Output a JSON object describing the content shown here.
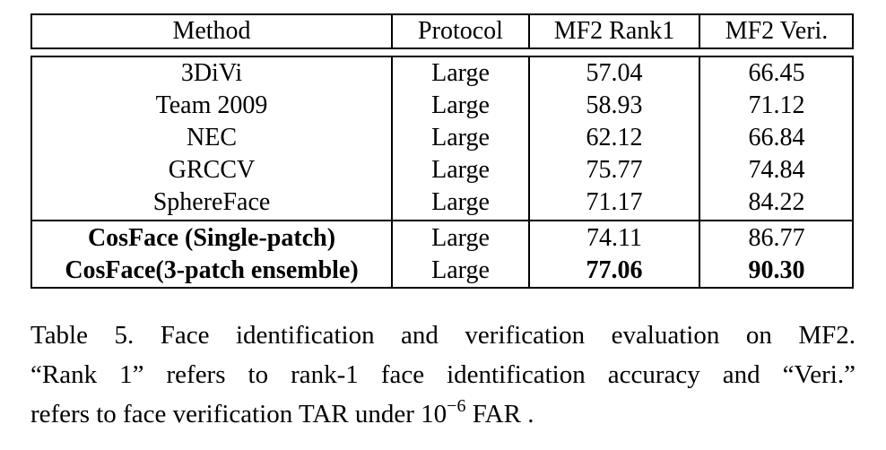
{
  "table": {
    "columns": [
      "Method",
      "Protocol",
      "MF2 Rank1",
      "MF2 Veri."
    ],
    "rows": [
      {
        "method": "3DiVi",
        "protocol": "Large",
        "rank1": "57.04",
        "veri": "66.45",
        "bold_method": false,
        "bold_rank1": false,
        "bold_veri": false
      },
      {
        "method": "Team 2009",
        "protocol": "Large",
        "rank1": "58.93",
        "veri": "71.12",
        "bold_method": false,
        "bold_rank1": false,
        "bold_veri": false
      },
      {
        "method": "NEC",
        "protocol": "Large",
        "rank1": "62.12",
        "veri": "66.84",
        "bold_method": false,
        "bold_rank1": false,
        "bold_veri": false
      },
      {
        "method": "GRCCV",
        "protocol": "Large",
        "rank1": "75.77",
        "veri": "74.84",
        "bold_method": false,
        "bold_rank1": false,
        "bold_veri": false
      },
      {
        "method": "SphereFace",
        "protocol": "Large",
        "rank1": "71.17",
        "veri": "84.22",
        "bold_method": false,
        "bold_rank1": false,
        "bold_veri": false
      },
      {
        "method": "CosFace (Single-patch)",
        "protocol": "Large",
        "rank1": "74.11",
        "veri": "86.77",
        "bold_method": true,
        "bold_rank1": false,
        "bold_veri": false
      },
      {
        "method": "CosFace(3-patch ensemble)",
        "protocol": "Large",
        "rank1": "77.06",
        "veri": "90.30",
        "bold_method": true,
        "bold_rank1": true,
        "bold_veri": true
      }
    ]
  },
  "caption": {
    "line1": "Table 5. Face identification and verification evaluation on MF2.",
    "line2": "“Rank 1” refers to rank-1 face identification accuracy and “Veri.”",
    "line3_pre": "refers to face verification TAR under 10",
    "line3_exp": "−6",
    "line3_post": " FAR ."
  }
}
